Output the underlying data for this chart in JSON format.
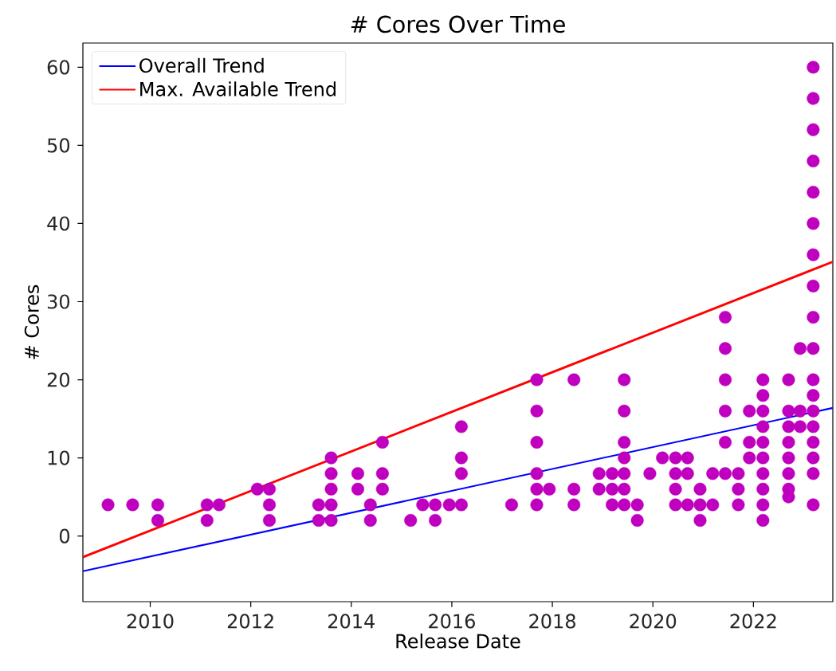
{
  "chart_data": {
    "type": "scatter",
    "title": "# Cores Over Time",
    "xlabel": "Release Date",
    "ylabel": "# Cores",
    "xlim": [
      2008.66,
      2023.58
    ],
    "ylim": [
      -8.4,
      63.1
    ],
    "xticks": [
      2010,
      2012,
      2014,
      2016,
      2018,
      2020,
      2022
    ],
    "yticks": [
      0,
      10,
      20,
      30,
      40,
      50,
      60
    ],
    "grid": false,
    "legend": "top left",
    "series": [
      {
        "marker": "circle",
        "color": "#bf00bf",
        "x": [
          2009.16,
          2009.65,
          2010.15,
          2010.15,
          2011.13,
          2011.13,
          2011.37,
          2012.13,
          2012.37,
          2012.37,
          2012.37,
          2013.35,
          2013.35,
          2013.6,
          2013.6,
          2013.6,
          2013.6,
          2013.6,
          2014.13,
          2014.13,
          2014.38,
          2014.38,
          2014.62,
          2014.62,
          2014.62,
          2015.18,
          2015.42,
          2015.67,
          2015.67,
          2015.95,
          2016.19,
          2016.19,
          2016.19,
          2016.19,
          2017.19,
          2017.69,
          2017.69,
          2017.69,
          2017.69,
          2017.69,
          2017.69,
          2017.94,
          2018.43,
          2018.43,
          2018.43,
          2018.93,
          2018.93,
          2019.19,
          2019.19,
          2019.19,
          2019.43,
          2019.43,
          2019.43,
          2019.43,
          2019.43,
          2019.43,
          2019.43,
          2019.69,
          2019.69,
          2019.94,
          2020.19,
          2020.45,
          2020.45,
          2020.45,
          2020.45,
          2020.69,
          2020.69,
          2020.69,
          2020.94,
          2020.94,
          2020.94,
          2021.19,
          2021.19,
          2021.44,
          2021.44,
          2021.44,
          2021.44,
          2021.44,
          2021.44,
          2021.7,
          2021.7,
          2021.7,
          2021.92,
          2021.92,
          2021.92,
          2022.19,
          2022.19,
          2022.19,
          2022.19,
          2022.19,
          2022.19,
          2022.19,
          2022.19,
          2022.19,
          2022.19,
          2022.7,
          2022.7,
          2022.7,
          2022.7,
          2022.7,
          2022.7,
          2022.7,
          2022.7,
          2022.93,
          2022.93,
          2022.93,
          2023.19,
          2023.19,
          2023.19,
          2023.19,
          2023.19,
          2023.19,
          2023.19,
          2023.19,
          2023.19,
          2023.19,
          2023.19,
          2023.19,
          2023.19,
          2023.19,
          2023.19,
          2023.19,
          2023.19,
          2023.19
        ],
        "values": [
          4,
          4,
          4,
          2,
          4,
          2,
          4,
          6,
          6,
          4,
          2,
          4,
          2,
          10,
          8,
          6,
          4,
          2,
          8,
          6,
          4,
          2,
          12,
          8,
          6,
          2,
          4,
          4,
          2,
          4,
          14,
          10,
          8,
          4,
          4,
          20,
          16,
          12,
          8,
          6,
          4,
          6,
          20,
          6,
          4,
          8,
          6,
          8,
          6,
          4,
          20,
          16,
          12,
          10,
          8,
          6,
          4,
          4,
          2,
          8,
          10,
          10,
          8,
          6,
          4,
          10,
          8,
          4,
          6,
          4,
          2,
          8,
          4,
          28,
          24,
          20,
          16,
          12,
          8,
          8,
          6,
          4,
          16,
          12,
          10,
          20,
          18,
          16,
          14,
          12,
          10,
          8,
          6,
          4,
          2,
          20,
          16,
          14,
          12,
          10,
          8,
          6,
          5,
          24,
          16,
          14,
          60,
          56,
          52,
          48,
          44,
          40,
          36,
          32,
          28,
          24,
          20,
          18,
          16,
          14,
          12,
          10,
          8,
          4
        ]
      },
      {
        "type": "line",
        "name": "Overall Trend",
        "color": "#0000ff",
        "marker": "none",
        "x": [
          2008.66,
          2023.58
        ],
        "values": [
          -4.5,
          16.4
        ]
      },
      {
        "type": "line",
        "name": "Max. Available Trend",
        "color": "#ff0000",
        "marker": "none",
        "x": [
          2008.66,
          2023.58
        ],
        "values": [
          -2.7,
          35.1
        ]
      }
    ]
  }
}
